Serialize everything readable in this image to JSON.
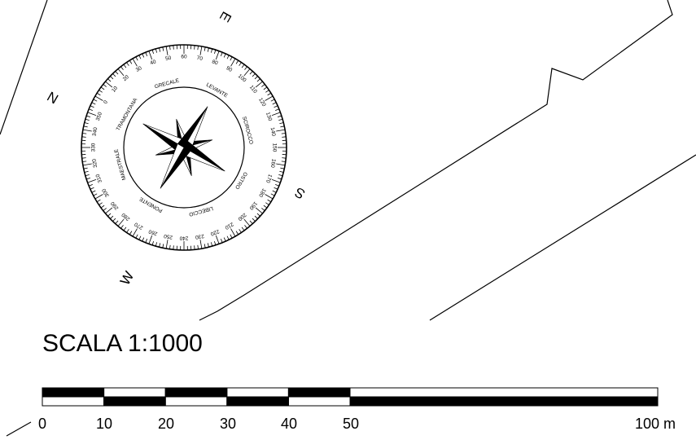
{
  "scale": {
    "title": "SCALA 1:1000",
    "labels": [
      "0",
      "10",
      "20",
      "30",
      "40",
      "50",
      "100 m"
    ]
  },
  "compass": {
    "cardinals": [
      "N",
      "E",
      "S",
      "W"
    ],
    "winds": [
      "TRAMONTANA",
      "GRECALE",
      "LEVANTE",
      "SCIROCCO",
      "OSTRO",
      "LIBECCIO",
      "PONENTE",
      "MAESTRALE"
    ],
    "degree_step": 10
  }
}
